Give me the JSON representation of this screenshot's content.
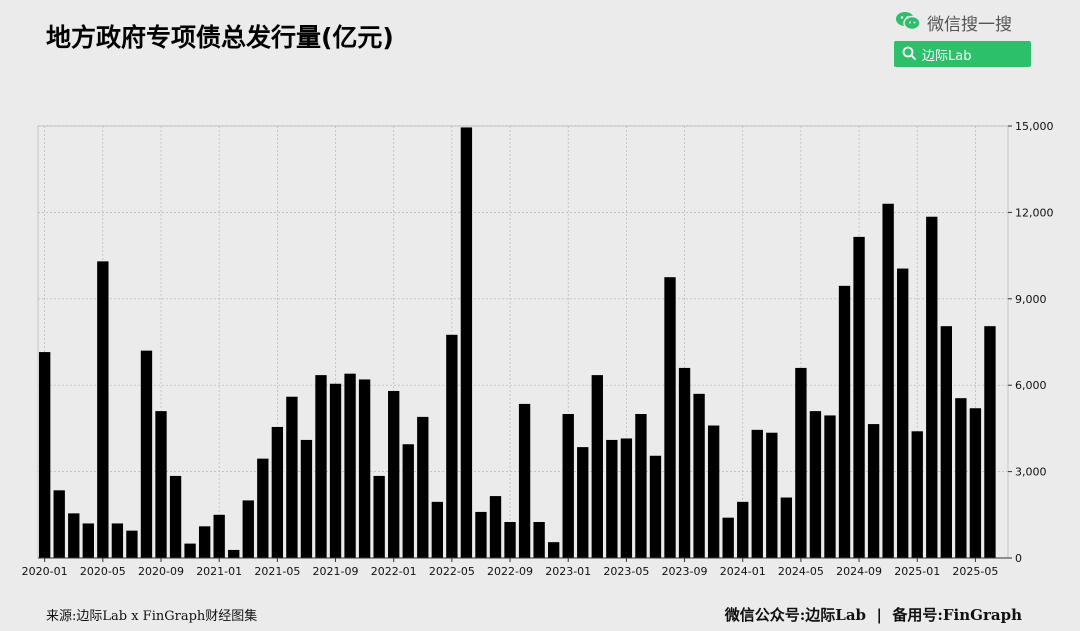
{
  "title": "地方政府专项债总发行量(亿元)",
  "wechat": {
    "label": "微信搜一搜",
    "icon": "wechat-icon",
    "search_icon": "search-icon",
    "search_text": "边际Lab",
    "accent": "#2cc06b"
  },
  "footer": {
    "source": "来源:边际Lab x FinGraph财经图集",
    "right": "微信公众号:边际Lab  |  备用号:FinGraph"
  },
  "chart_data": {
    "type": "bar",
    "y_axis_position": "right",
    "ylim": [
      0,
      15000
    ],
    "yticks": [
      "0",
      "3,000",
      "6,000",
      "9,000",
      "12,000",
      "15,000"
    ],
    "ytick_values": [
      0,
      3000,
      6000,
      9000,
      12000,
      15000
    ],
    "xtick_labels": [
      "2020-01",
      "2020-05",
      "2020-09",
      "2021-01",
      "2021-05",
      "2021-09",
      "2022-01",
      "2022-05",
      "2022-09",
      "2023-01",
      "2023-05",
      "2023-09",
      "2024-01",
      "2024-05",
      "2024-09",
      "2025-01",
      "2025-05"
    ],
    "xtick_step": 4,
    "grid": true,
    "bar_color": "#000000",
    "categories": [
      "2020-01",
      "2020-02",
      "2020-03",
      "2020-04",
      "2020-05",
      "2020-06",
      "2020-07",
      "2020-08",
      "2020-09",
      "2020-10",
      "2020-11",
      "2020-12",
      "2021-01",
      "2021-02",
      "2021-03",
      "2021-04",
      "2021-05",
      "2021-06",
      "2021-07",
      "2021-08",
      "2021-09",
      "2021-10",
      "2021-11",
      "2021-12",
      "2022-01",
      "2022-02",
      "2022-03",
      "2022-04",
      "2022-05",
      "2022-06",
      "2022-07",
      "2022-08",
      "2022-09",
      "2022-10",
      "2022-11",
      "2022-12",
      "2023-01",
      "2023-02",
      "2023-03",
      "2023-04",
      "2023-05",
      "2023-06",
      "2023-07",
      "2023-08",
      "2023-09",
      "2023-10",
      "2023-11",
      "2023-12",
      "2024-01",
      "2024-02",
      "2024-03",
      "2024-04",
      "2024-05",
      "2024-06",
      "2024-07",
      "2024-08",
      "2024-09",
      "2024-10",
      "2024-11",
      "2024-12",
      "2025-01",
      "2025-02",
      "2025-03",
      "2025-04",
      "2025-05",
      "2025-06",
      "2025-07"
    ],
    "values": [
      7150,
      2350,
      1550,
      1200,
      10300,
      1200,
      950,
      7200,
      5100,
      2850,
      500,
      1100,
      1500,
      280,
      2000,
      3450,
      4550,
      5600,
      4100,
      6350,
      6050,
      6400,
      6200,
      2850,
      5800,
      3950,
      4900,
      1950,
      7750,
      14950,
      1600,
      2150,
      1250,
      5350,
      1250,
      550,
      5000,
      3850,
      6350,
      4100,
      4150,
      5000,
      3550,
      9750,
      6600,
      5700,
      4600,
      1400,
      1950,
      4450,
      4350,
      2100,
      6600,
      5100,
      4950,
      9450,
      11150,
      4650,
      12300,
      10050,
      4400,
      11850,
      8050,
      5550,
      5200,
      8050,
      0
    ]
  }
}
